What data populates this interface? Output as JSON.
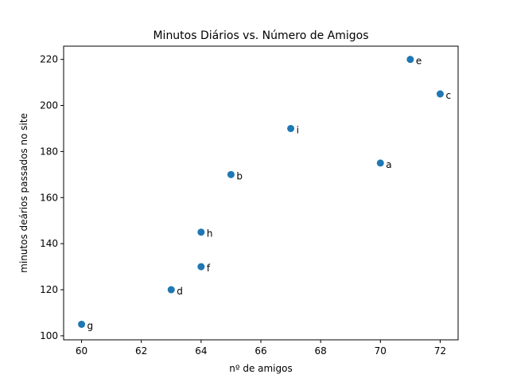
{
  "chart_data": {
    "type": "scatter",
    "title": "Minutos Diários vs. Número de Amigos",
    "xlabel": "nº de amigos",
    "ylabel": "minutos deários passados no site",
    "xlim": [
      59.4,
      72.6
    ],
    "ylim": [
      98.25,
      225.75
    ],
    "xticks": [
      60,
      62,
      64,
      66,
      68,
      70,
      72
    ],
    "yticks": [
      100,
      120,
      140,
      160,
      180,
      200,
      220
    ],
    "grid": false,
    "marker_color": "#1f77b4",
    "points": [
      {
        "label": "a",
        "x": 70,
        "y": 175
      },
      {
        "label": "b",
        "x": 65,
        "y": 170
      },
      {
        "label": "c",
        "x": 72,
        "y": 205
      },
      {
        "label": "d",
        "x": 63,
        "y": 120
      },
      {
        "label": "e",
        "x": 71,
        "y": 220
      },
      {
        "label": "f",
        "x": 64,
        "y": 130
      },
      {
        "label": "g",
        "x": 60,
        "y": 105
      },
      {
        "label": "h",
        "x": 64,
        "y": 145
      },
      {
        "label": "i",
        "x": 67,
        "y": 190
      }
    ]
  }
}
